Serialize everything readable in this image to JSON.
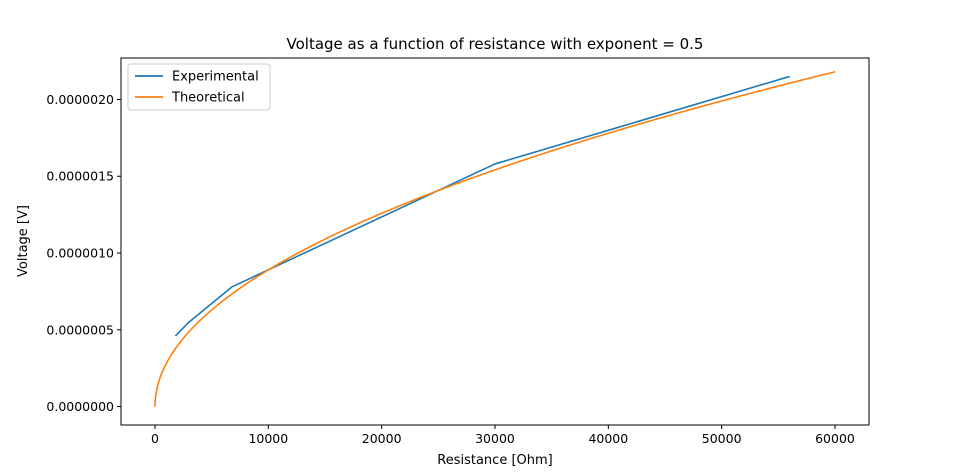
{
  "chart_data": {
    "type": "line",
    "title": "Voltage as a function of resistance with exponent = 0.5",
    "xlabel": "Resistance [Ohm]",
    "ylabel": "Voltage [V]",
    "xlim": [
      -3000,
      63000
    ],
    "ylim": [
      -1.2e-07,
      2.27e-06
    ],
    "xticks": [
      0,
      10000,
      20000,
      30000,
      40000,
      50000,
      60000
    ],
    "xtick_labels": [
      "0",
      "10000",
      "20000",
      "30000",
      "40000",
      "50000",
      "60000"
    ],
    "yticks": [
      0,
      5e-07,
      1e-06,
      1.5e-06,
      2e-06
    ],
    "ytick_labels": [
      "0.0000000",
      "0.0000005",
      "0.0000010",
      "0.0000015",
      "0.0000020"
    ],
    "grid": false,
    "legend_position": "top-left",
    "series": [
      {
        "name": "Experimental",
        "color": "#1f77b4",
        "x": [
          1800,
          3000,
          6800,
          30000,
          56000
        ],
        "y": [
          4.6e-07,
          5.5e-07,
          7.8e-07,
          1.58e-06,
          2.15e-06
        ]
      },
      {
        "name": "Theoretical",
        "color": "#ff7f0e",
        "function": "sqrt",
        "coefficient": 8.9e-09,
        "x_range": [
          0,
          60000
        ]
      }
    ]
  }
}
